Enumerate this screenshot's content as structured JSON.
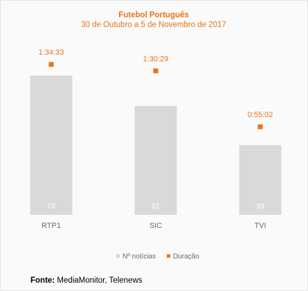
{
  "chart_data": {
    "type": "bar",
    "title": "Futebol Português",
    "subtitle": "30 de Outubro a 5 de Novembro de 2017",
    "categories": [
      "RTP1",
      "SIC",
      "TVI"
    ],
    "series": [
      {
        "name": "Nº notícias",
        "kind": "bar",
        "values": [
          78,
          61,
          39
        ],
        "color": "#d9d9d9"
      },
      {
        "name": "Duração",
        "kind": "marker",
        "values": [
          "1:34:33",
          "1:30:29",
          "0:55:02"
        ],
        "color": "#e8731a"
      }
    ],
    "legend_position": "bottom",
    "grid": false,
    "ylim": [
      0,
      78
    ]
  },
  "source": {
    "label": "Fonte:",
    "text": " MediaMonitor, Telenews"
  }
}
